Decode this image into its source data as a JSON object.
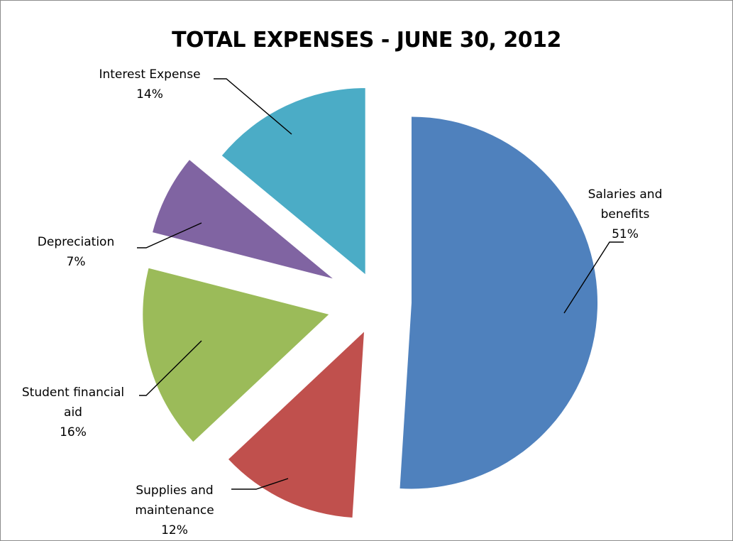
{
  "chart_data": {
    "type": "pie",
    "title": "TOTAL EXPENSES - JUNE 30, 2012",
    "exploded": true,
    "legend": "none",
    "slices": [
      {
        "name": "Salaries and benefits",
        "value": 51,
        "value_label": "51%",
        "label_lines": [
          "Salaries and",
          "benefits",
          "51%"
        ],
        "color": "#4F81BD"
      },
      {
        "name": "Supplies and maintenance",
        "value": 12,
        "value_label": "12%",
        "label_lines": [
          "Supplies and",
          "maintenance",
          "12%"
        ],
        "color": "#C0504D"
      },
      {
        "name": "Student financial aid",
        "value": 16,
        "value_label": "16%",
        "label_lines": [
          "Student financial",
          "aid",
          "16%"
        ],
        "color": "#9BBB59"
      },
      {
        "name": "Depreciation",
        "value": 7,
        "value_label": "7%",
        "label_lines": [
          "Depreciation",
          "7%"
        ],
        "color": "#8064A2"
      },
      {
        "name": "Interest Expense",
        "value": 14,
        "value_label": "14%",
        "label_lines": [
          "Interest Expense",
          "14%"
        ],
        "color": "#4BACC6"
      }
    ]
  }
}
